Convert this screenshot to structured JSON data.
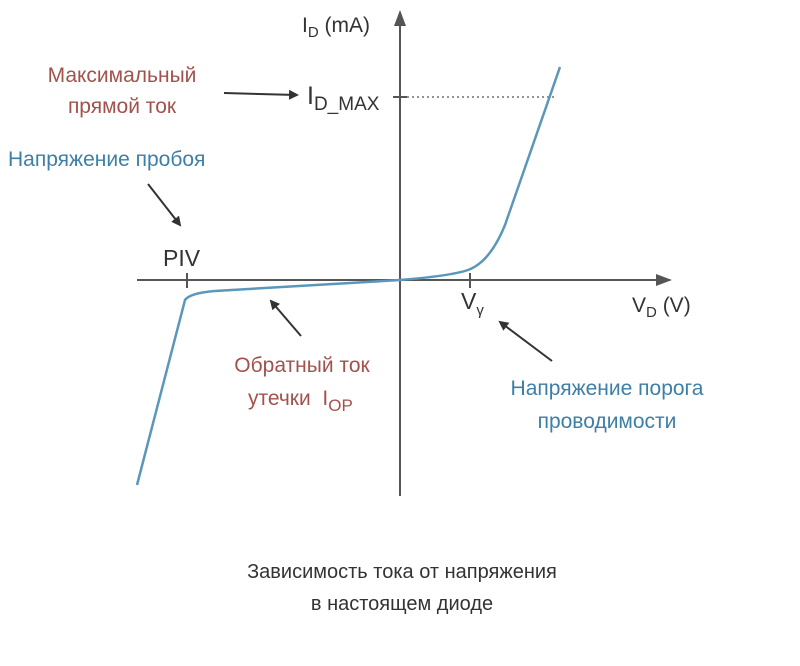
{
  "title": [
    "Зависимость тока от напряжения",
    "в настоящем диоде"
  ],
  "axes": {
    "y": {
      "symbol": "I",
      "subscript": "D",
      "unit": " (mA)"
    },
    "x": {
      "symbol": "V",
      "subscript": "D",
      "unit": " (V)"
    }
  },
  "points": {
    "max_current": {
      "symbol": "I",
      "subscript": "D_MAX"
    },
    "piv": "PIV",
    "threshold": {
      "symbol": "V",
      "subscript": "γ"
    }
  },
  "annotations": {
    "max_current": [
      "Максимальный",
      "прямой ток"
    ],
    "breakdown": "Напряжение пробоя",
    "leakage": {
      "lines": [
        "Обратный ток",
        "утечки  I"
      ],
      "subscript": "OP"
    },
    "threshold": [
      "Напряжение порога",
      "проводимости"
    ]
  }
}
